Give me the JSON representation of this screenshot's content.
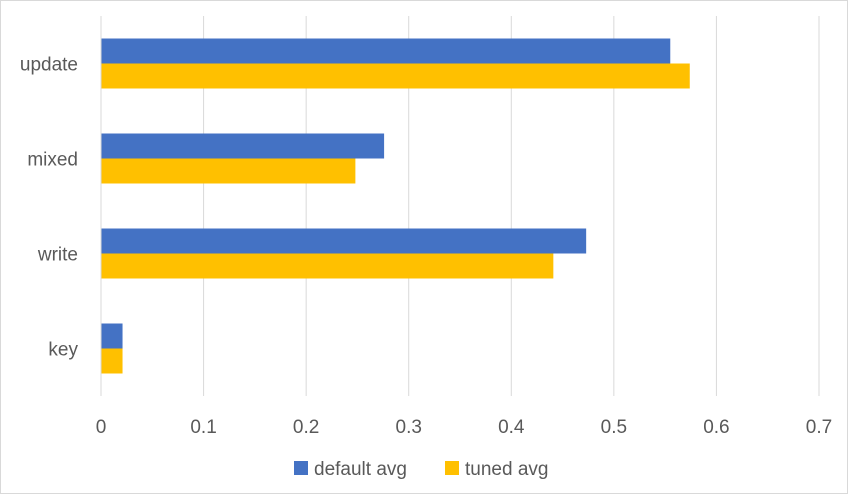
{
  "chart_data": {
    "type": "bar",
    "orientation": "horizontal",
    "categories": [
      "update",
      "mixed",
      "write",
      "key"
    ],
    "series": [
      {
        "name": "default avg",
        "values": [
          0.555,
          0.276,
          0.473,
          0.021
        ],
        "color": "#4472c4"
      },
      {
        "name": "tuned avg",
        "values": [
          0.574,
          0.248,
          0.441,
          0.021
        ],
        "color": "#ffc000"
      }
    ],
    "xlim": [
      0,
      0.7
    ],
    "xticks": [
      0,
      0.1,
      0.2,
      0.3,
      0.4,
      0.5,
      0.6,
      0.7
    ],
    "xtick_labels": [
      "0",
      "0.1",
      "0.2",
      "0.3",
      "0.4",
      "0.5",
      "0.6",
      "0.7"
    ],
    "grid": "vertical",
    "legend_position": "bottom"
  }
}
